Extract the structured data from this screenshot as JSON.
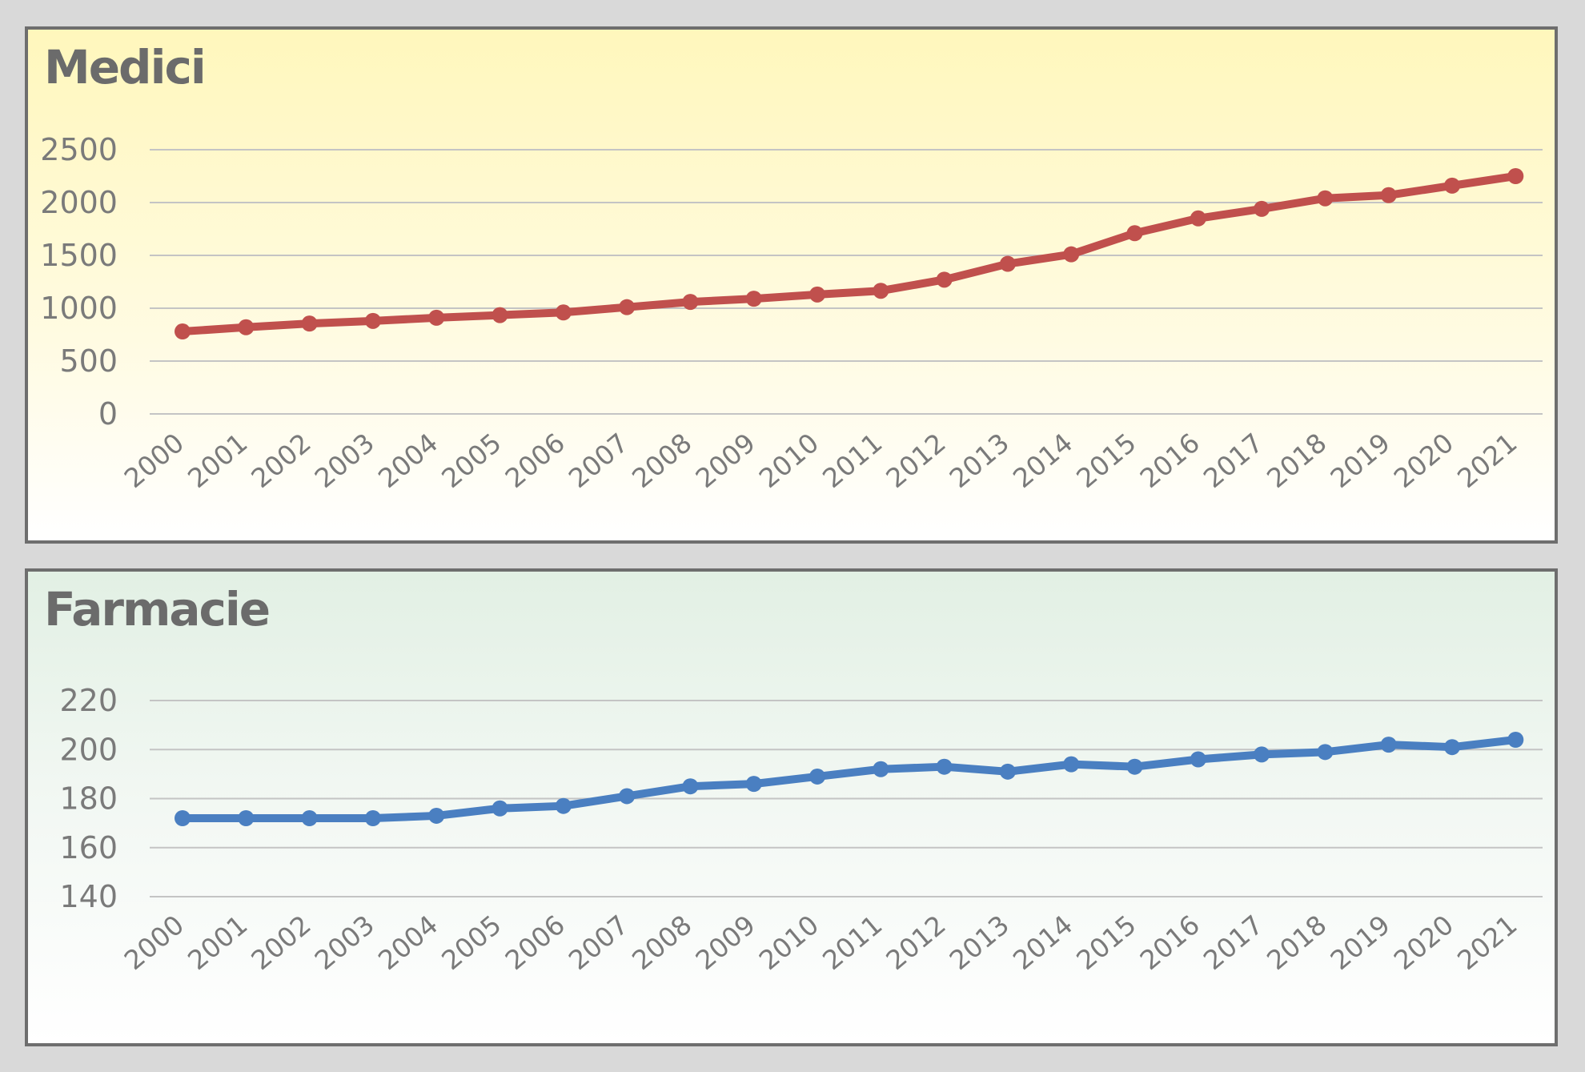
{
  "chart_data": [
    {
      "type": "line",
      "title": "Medici",
      "categories": [
        "2000",
        "2001",
        "2002",
        "2003",
        "2004",
        "2005",
        "2006",
        "2007",
        "2008",
        "2009",
        "2010",
        "2011",
        "2012",
        "2013",
        "2014",
        "2015",
        "2016",
        "2017",
        "2018",
        "2019",
        "2020",
        "2021"
      ],
      "values": [
        780,
        820,
        855,
        880,
        910,
        935,
        960,
        1010,
        1060,
        1090,
        1130,
        1165,
        1270,
        1420,
        1510,
        1710,
        1850,
        1940,
        2040,
        2070,
        2160,
        2250
      ],
      "yticks": [
        "0",
        "500",
        "1000",
        "1500",
        "2000",
        "2500"
      ],
      "ylim": [
        0,
        2500
      ],
      "grid": true,
      "color": "#c0504d"
    },
    {
      "type": "line",
      "title": "Farmacie",
      "categories": [
        "2000",
        "2001",
        "2002",
        "2003",
        "2004",
        "2005",
        "2006",
        "2007",
        "2008",
        "2009",
        "2010",
        "2011",
        "2012",
        "2013",
        "2014",
        "2015",
        "2016",
        "2017",
        "2018",
        "2019",
        "2020",
        "2021"
      ],
      "values": [
        172,
        172,
        172,
        172,
        173,
        176,
        177,
        181,
        185,
        186,
        189,
        192,
        193,
        191,
        194,
        193,
        196,
        198,
        199,
        202,
        201,
        204
      ],
      "yticks": [
        "140",
        "160",
        "180",
        "200",
        "220"
      ],
      "ylim": [
        140,
        220
      ],
      "grid": true,
      "color": "#4a7fc1"
    }
  ]
}
